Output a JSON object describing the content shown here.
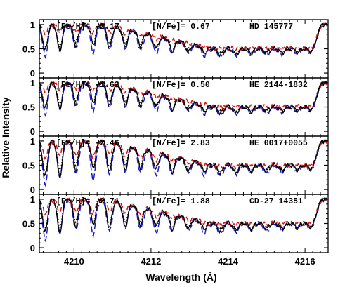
{
  "chart_data": {
    "type": "line",
    "xlabel": "Wavelength (Å)",
    "ylabel": "Relative Intensity",
    "xlim": [
      4209.1,
      4216.6
    ],
    "x_ticks": [
      "4210",
      "4212",
      "4214",
      "4216"
    ],
    "y_ticks": [
      "0",
      "0.5",
      "1"
    ],
    "series_styles": [
      {
        "color": "#000000",
        "dash": "solid"
      },
      {
        "color": "#000000",
        "dash": "dotted"
      },
      {
        "color": "#1a1ad6",
        "dash": "long-dash"
      },
      {
        "color": "#dd1111",
        "dash": "dashed"
      }
    ],
    "panels": [
      {
        "id": "p1",
        "label_feh": "[Fe/H]= -2.17",
        "label_nfe": "[N/Fe]= 0.67",
        "star": "HD 145777",
        "ylim": [
          -0.1,
          1.1
        ],
        "depth": 0.55,
        "red_floor": 0.58
      },
      {
        "id": "p2",
        "label_feh": "[Fe/H]= -1.63",
        "label_nfe": "[N/Fe]= 0.50",
        "star": "HE 2144-1832",
        "ylim": [
          -0.1,
          1.1
        ],
        "depth": 0.55,
        "red_floor": 0.6
      },
      {
        "id": "p3",
        "label_feh": "[Fe/H]= -2.46",
        "label_nfe": "[N/Fe]= 2.83",
        "star": "HE 0017+0055",
        "ylim": [
          -0.1,
          1.1
        ],
        "depth": 0.75,
        "red_floor": 0.4
      },
      {
        "id": "p4",
        "label_feh": "[Fe/H]= -2.71",
        "label_nfe": "[N/Fe]= 1.88",
        "star": "CD-27 14351",
        "ylim": [
          -0.1,
          1.1
        ],
        "depth": 0.7,
        "red_floor": 0.45
      }
    ],
    "band_lines": [
      4209.25,
      4209.63,
      4210.05,
      4210.5,
      4210.92,
      4211.33,
      4211.73,
      4212.13,
      4212.55,
      4212.97,
      4213.38,
      4213.8,
      4214.2,
      4214.6,
      4215.0,
      4215.4,
      4215.8,
      4216.15
    ]
  }
}
